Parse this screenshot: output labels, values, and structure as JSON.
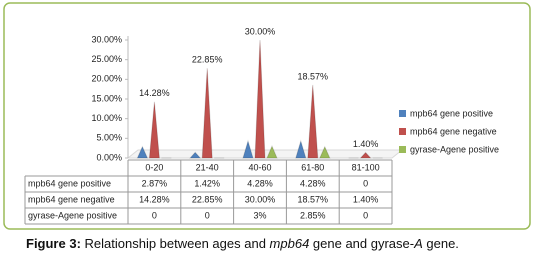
{
  "chart_data": {
    "type": "cone",
    "categories": [
      "0-20",
      "21-40",
      "40-60",
      "61-80",
      "81-100"
    ],
    "series": [
      {
        "name": "mpb64 gene positive",
        "color": "#4f81bd",
        "values": [
          2.87,
          1.42,
          4.28,
          4.28,
          0
        ],
        "value_labels": [
          "2.87%",
          "1.42%",
          "4.28%",
          "4.28%",
          "0"
        ]
      },
      {
        "name": "mpb64 gene negative",
        "color": "#c0504d",
        "values": [
          14.28,
          22.85,
          30,
          18.57,
          1.4
        ],
        "value_labels": [
          "14.28%",
          "22.85%",
          "30.00%",
          "18.57%",
          "1.40%"
        ],
        "show_labels": true
      },
      {
        "name": "gyrase-Agene positive",
        "color": "#9bbb59",
        "values": [
          0,
          0,
          3,
          2.85,
          0
        ],
        "value_labels": [
          "0",
          "0",
          "3%",
          "2.85%",
          "0"
        ]
      }
    ],
    "ylim": [
      0,
      30
    ],
    "yticks": [
      {
        "value": 0,
        "label": "0.00%"
      },
      {
        "value": 5,
        "label": "5.00%"
      },
      {
        "value": 10,
        "label": "10.00%"
      },
      {
        "value": 15,
        "label": "15.00%"
      },
      {
        "value": 20,
        "label": "20.00%"
      },
      {
        "value": 25,
        "label": "25.00%"
      },
      {
        "value": 30,
        "label": "30.00%"
      }
    ],
    "legend": "right",
    "caption": [
      "Figure 3:",
      " Relationship between ages and ",
      "mpb64",
      " gene and gyrase-",
      "A",
      " gene."
    ]
  }
}
